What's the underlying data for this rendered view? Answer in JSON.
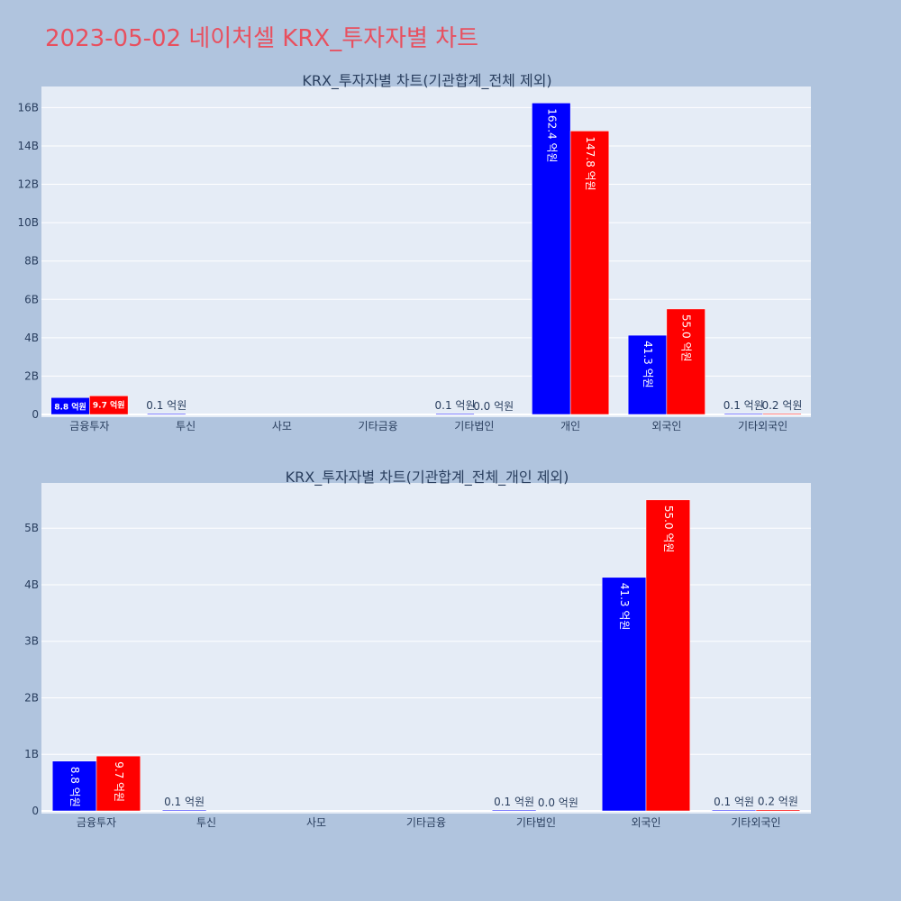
{
  "title": "2023-05-02 네이처셀 KRX_투자자별 차트",
  "colors": {
    "buy": "#0000ff",
    "sell": "#ff0000",
    "plot_bg": "#e5ecf6",
    "page_bg": "#b0c4de",
    "title": "#e8505f"
  },
  "chart_data": [
    {
      "type": "bar",
      "title": "KRX_투자자별 차트(기관합계_전체 제외)",
      "categories": [
        "금융투자",
        "투신",
        "사모",
        "기타금융",
        "기타법인",
        "개인",
        "외국인",
        "기타외국인"
      ],
      "series": [
        {
          "color": "#0000ff",
          "values": [
            880000000,
            10000000,
            0,
            0,
            10000000,
            16240000000,
            4130000000,
            10000000
          ],
          "labels": [
            "8.8 억원",
            "0.1 억원",
            "",
            "",
            "0.1 억원",
            "162.4 억원",
            "41.3 억원",
            "0.1 억원"
          ]
        },
        {
          "color": "#ff0000",
          "values": [
            970000000,
            0,
            0,
            0,
            0,
            14780000000,
            5500000000,
            20000000
          ],
          "labels": [
            "9.7 억원",
            "",
            "",
            "",
            "0.0 억원",
            "147.8 억원",
            "55.0 억원",
            "0.2 억원"
          ]
        }
      ],
      "yticks": [
        0,
        2000000000,
        4000000000,
        6000000000,
        8000000000,
        10000000000,
        12000000000,
        14000000000,
        16000000000
      ],
      "ytick_labels": [
        "0",
        "2B",
        "4B",
        "6B",
        "8B",
        "10B",
        "12B",
        "14B",
        "16B"
      ],
      "ylim": [
        0,
        17100000000
      ],
      "grid": true
    },
    {
      "type": "bar",
      "title": "KRX_투자자별 차트(기관합계_전체_개인 제외)",
      "categories": [
        "금융투자",
        "투신",
        "사모",
        "기타금융",
        "기타법인",
        "외국인",
        "기타외국인"
      ],
      "series": [
        {
          "color": "#0000ff",
          "values": [
            880000000,
            10000000,
            0,
            0,
            10000000,
            4130000000,
            10000000
          ],
          "labels": [
            "8.8 억원",
            "0.1 억원",
            "",
            "",
            "0.1 억원",
            "41.3 억원",
            "0.1 억원"
          ]
        },
        {
          "color": "#ff0000",
          "values": [
            970000000,
            0,
            0,
            0,
            0,
            5500000000,
            20000000
          ],
          "labels": [
            "9.7 억원",
            "",
            "",
            "",
            "0.0 억원",
            "55.0 억원",
            "0.2 억원"
          ]
        }
      ],
      "yticks": [
        0,
        1000000000,
        2000000000,
        3000000000,
        4000000000,
        5000000000
      ],
      "ytick_labels": [
        "0",
        "1B",
        "2B",
        "3B",
        "4B",
        "5B"
      ],
      "ylim": [
        0,
        5800000000
      ],
      "grid": true
    }
  ]
}
